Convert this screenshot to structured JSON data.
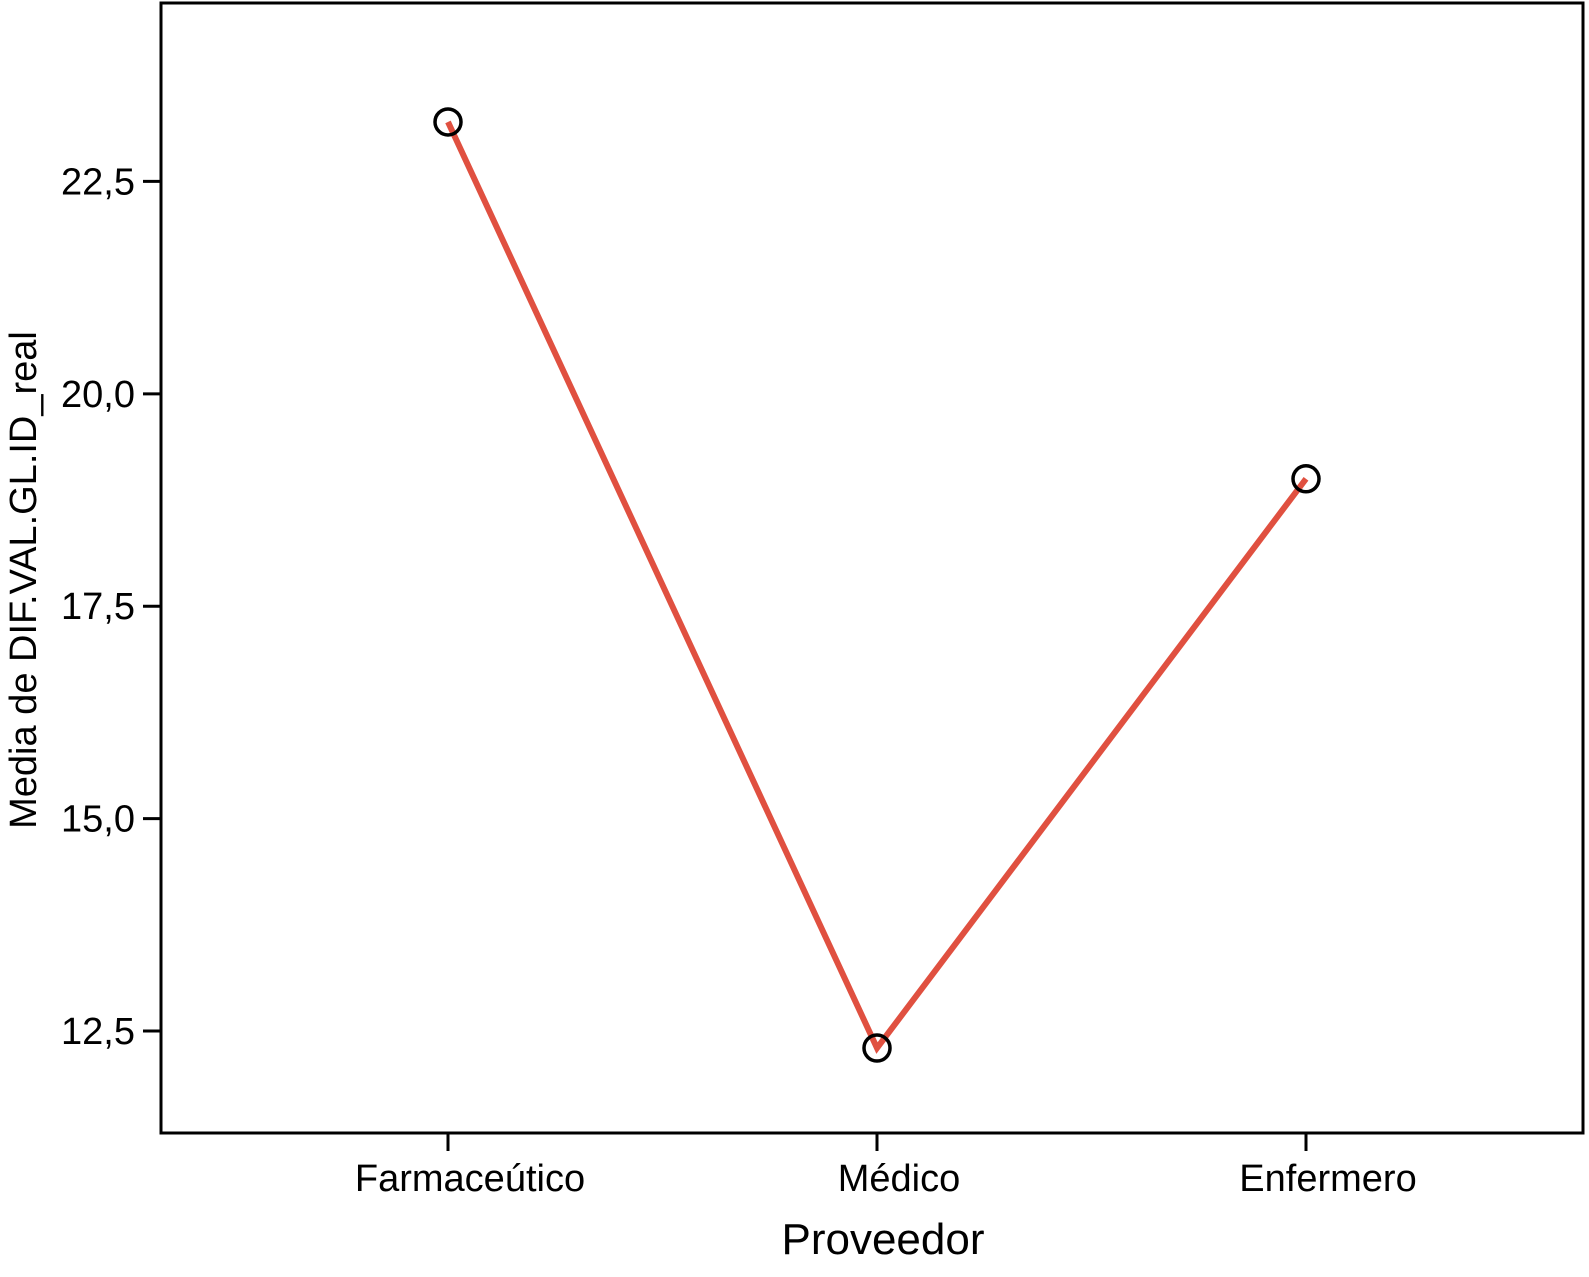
{
  "chart_data": {
    "type": "line",
    "title": "",
    "xlabel": "Proveedor",
    "ylabel": "Media de DIF.VAL.GL.ID_real",
    "categories": [
      "Farmaceútico",
      "Médico",
      "Enfermero"
    ],
    "series": [
      {
        "values": [
          23.2,
          12.3,
          19.0
        ]
      }
    ],
    "ylim": [
      11.3,
      24.6
    ],
    "yticks": [
      12.5,
      15.0,
      17.5,
      20.0,
      22.5
    ],
    "ytick_labels": [
      "12,5",
      "15,0",
      "17,5",
      "20,0",
      "22,5"
    ],
    "grid": false,
    "legend": "none",
    "colors": {
      "line": "#e05040",
      "marker": "#000000",
      "axis": "#000000"
    }
  }
}
